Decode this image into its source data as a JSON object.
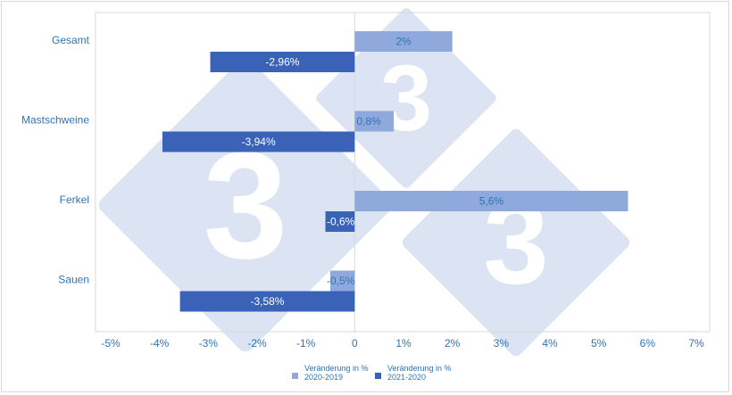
{
  "colors": {
    "series_1": "#8fa9dc",
    "series_2": "#3a63b8",
    "text": "#2e74b5",
    "watermark": "#d6dff0"
  },
  "watermark": {
    "glyph": "3",
    "icon": "logo-3-diamond"
  },
  "chart_data": {
    "type": "bar",
    "orientation": "horizontal",
    "categories": [
      "Gesamt",
      "Mastschweine",
      "Ferkel",
      "Sauen"
    ],
    "series": [
      {
        "name": "Veränderung in % 2020-2019",
        "legend_lines": [
          "Veränderung in %",
          "2020-2019"
        ],
        "values": [
          2,
          0.8,
          5.6,
          -0.5
        ],
        "labels": [
          "2%",
          "0,8%",
          "5,6%",
          "-0,5%"
        ]
      },
      {
        "name": "Veränderung in % 2021-2020",
        "legend_lines": [
          "Veränderung in %",
          "2021-2020"
        ],
        "values": [
          -2.96,
          -3.94,
          -0.6,
          -3.58
        ],
        "labels": [
          "-2,96%",
          "-3,94%",
          "-0,6%",
          "-3,58%"
        ]
      }
    ],
    "xlim": [
      -5,
      7
    ],
    "x_ticks": [
      -5,
      -4,
      -3,
      -2,
      -1,
      0,
      1,
      2,
      3,
      4,
      5,
      6,
      7
    ],
    "x_tick_labels": [
      "-5%",
      "-4%",
      "-3%",
      "-2%",
      "-1%",
      "0",
      "1%",
      "2%",
      "3%",
      "4%",
      "5%",
      "6%",
      "7%"
    ],
    "title": "",
    "xlabel": "",
    "ylabel": "",
    "grid": false,
    "legend_position": "bottom"
  }
}
